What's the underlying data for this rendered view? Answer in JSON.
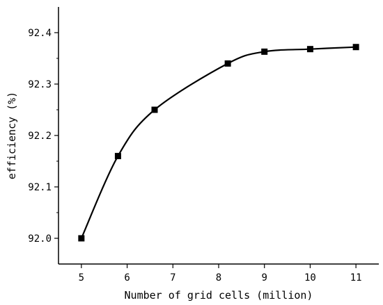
{
  "chart_data": {
    "type": "line",
    "title": "",
    "xlabel": "Number of grid cells (million)",
    "ylabel": "efficiency (%)",
    "xlim": [
      4.5,
      11.5
    ],
    "ylim": [
      91.95,
      92.45
    ],
    "x_ticks": [
      "5",
      "6",
      "7",
      "8",
      "9",
      "10",
      "11"
    ],
    "y_ticks": [
      "92.0",
      "92.1",
      "92.2",
      "92.3",
      "92.4"
    ],
    "series": [
      {
        "marker": "square",
        "color": "#000000",
        "x": [
          5,
          5.8,
          6.6,
          8.2,
          9,
          10,
          11
        ],
        "y": [
          92.0,
          92.16,
          92.25,
          92.34,
          92.363,
          92.368,
          92.372
        ]
      }
    ],
    "grid": false,
    "legend": "none"
  }
}
